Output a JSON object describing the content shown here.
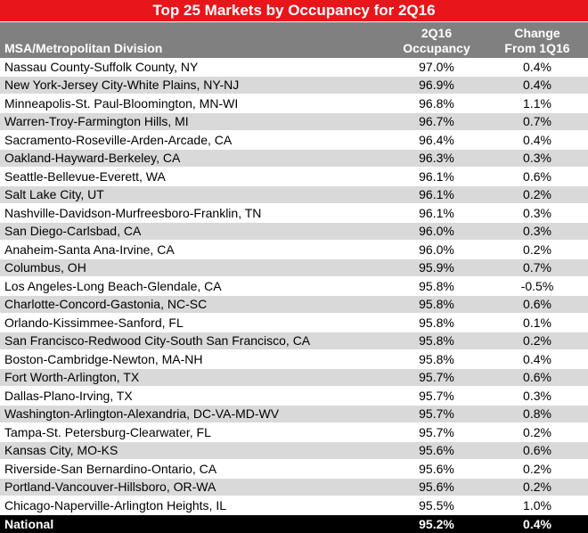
{
  "title": "Top 25 Markets by Occupancy for 2Q16",
  "headers": {
    "msa": "MSA/Metropolitan Division",
    "occupancy_line1": "2Q16",
    "occupancy_line2": "Occupancy",
    "change_line1": "Change",
    "change_line2": "From 1Q16"
  },
  "rows": [
    {
      "msa": "Nassau County-Suffolk County, NY",
      "occupancy": "97.0%",
      "change": "0.4%"
    },
    {
      "msa": "New York-Jersey City-White Plains, NY-NJ",
      "occupancy": "96.9%",
      "change": "0.4%"
    },
    {
      "msa": "Minneapolis-St. Paul-Bloomington, MN-WI",
      "occupancy": "96.8%",
      "change": "1.1%"
    },
    {
      "msa": "Warren-Troy-Farmington Hills, MI",
      "occupancy": "96.7%",
      "change": "0.7%"
    },
    {
      "msa": "Sacramento-Roseville-Arden-Arcade, CA",
      "occupancy": "96.4%",
      "change": "0.4%"
    },
    {
      "msa": "Oakland-Hayward-Berkeley, CA",
      "occupancy": "96.3%",
      "change": "0.3%"
    },
    {
      "msa": "Seattle-Bellevue-Everett, WA",
      "occupancy": "96.1%",
      "change": "0.6%"
    },
    {
      "msa": "Salt Lake City, UT",
      "occupancy": "96.1%",
      "change": "0.2%"
    },
    {
      "msa": "Nashville-Davidson-Murfreesboro-Franklin, TN",
      "occupancy": "96.1%",
      "change": "0.3%"
    },
    {
      "msa": "San Diego-Carlsbad, CA",
      "occupancy": "96.0%",
      "change": "0.3%"
    },
    {
      "msa": "Anaheim-Santa Ana-Irvine, CA",
      "occupancy": "96.0%",
      "change": "0.2%"
    },
    {
      "msa": "Columbus, OH",
      "occupancy": "95.9%",
      "change": "0.7%"
    },
    {
      "msa": "Los Angeles-Long Beach-Glendale, CA",
      "occupancy": "95.8%",
      "change": "-0.5%"
    },
    {
      "msa": "Charlotte-Concord-Gastonia, NC-SC",
      "occupancy": "95.8%",
      "change": "0.6%"
    },
    {
      "msa": "Orlando-Kissimmee-Sanford, FL",
      "occupancy": "95.8%",
      "change": "0.1%"
    },
    {
      "msa": "San Francisco-Redwood City-South San Francisco, CA",
      "occupancy": "95.8%",
      "change": "0.2%"
    },
    {
      "msa": "Boston-Cambridge-Newton, MA-NH",
      "occupancy": "95.8%",
      "change": "0.4%"
    },
    {
      "msa": "Fort Worth-Arlington, TX",
      "occupancy": "95.7%",
      "change": "0.6%"
    },
    {
      "msa": "Dallas-Plano-Irving, TX",
      "occupancy": "95.7%",
      "change": "0.3%"
    },
    {
      "msa": "Washington-Arlington-Alexandria, DC-VA-MD-WV",
      "occupancy": "95.7%",
      "change": "0.8%"
    },
    {
      "msa": "Tampa-St. Petersburg-Clearwater, FL",
      "occupancy": "95.7%",
      "change": "0.2%"
    },
    {
      "msa": "Kansas City, MO-KS",
      "occupancy": "95.6%",
      "change": "0.6%"
    },
    {
      "msa": "Riverside-San Bernardino-Ontario, CA",
      "occupancy": "95.6%",
      "change": "0.2%"
    },
    {
      "msa": "Portland-Vancouver-Hillsboro, OR-WA",
      "occupancy": "95.6%",
      "change": "0.2%"
    },
    {
      "msa": "Chicago-Naperville-Arlington Heights, IL",
      "occupancy": "95.5%",
      "change": "1.0%"
    }
  ],
  "total": {
    "msa": "National",
    "occupancy": "95.2%",
    "change": "0.4%"
  },
  "colors": {
    "title_bg": "#e8151b",
    "header_bg": "#808080",
    "stripe": "#d9d9d9",
    "total_bg": "#000000"
  }
}
